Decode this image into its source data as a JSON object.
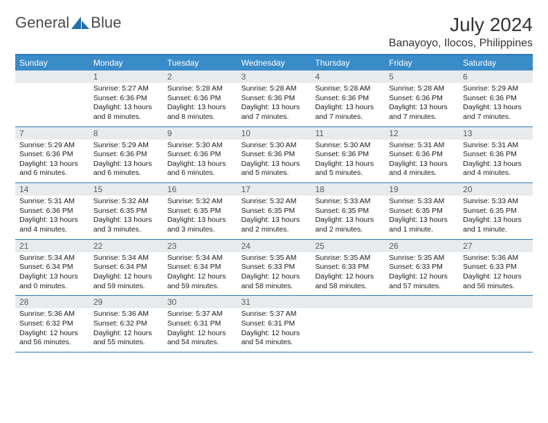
{
  "logo": {
    "text1": "General",
    "text2": "Blue"
  },
  "title": "July 2024",
  "location": "Banayoyo, Ilocos, Philippines",
  "colors": {
    "header_bar": "#3a8cc9",
    "border": "#2b77b8",
    "daynum_bg": "#e8ebed",
    "text": "#1a1a1a",
    "muted": "#5a5a5a",
    "logo_accent": "#1f6fb0"
  },
  "fonts": {
    "title_size": 28,
    "location_size": 16,
    "weekday_size": 12,
    "daynum_size": 12,
    "body_size": 10.5
  },
  "weekdays": [
    "Sunday",
    "Monday",
    "Tuesday",
    "Wednesday",
    "Thursday",
    "Friday",
    "Saturday"
  ],
  "weeks": [
    [
      {
        "empty": true
      },
      {
        "num": "1",
        "sunrise": "Sunrise: 5:27 AM",
        "sunset": "Sunset: 6:36 PM",
        "daylight": "Daylight: 13 hours and 8 minutes."
      },
      {
        "num": "2",
        "sunrise": "Sunrise: 5:28 AM",
        "sunset": "Sunset: 6:36 PM",
        "daylight": "Daylight: 13 hours and 8 minutes."
      },
      {
        "num": "3",
        "sunrise": "Sunrise: 5:28 AM",
        "sunset": "Sunset: 6:36 PM",
        "daylight": "Daylight: 13 hours and 7 minutes."
      },
      {
        "num": "4",
        "sunrise": "Sunrise: 5:28 AM",
        "sunset": "Sunset: 6:36 PM",
        "daylight": "Daylight: 13 hours and 7 minutes."
      },
      {
        "num": "5",
        "sunrise": "Sunrise: 5:28 AM",
        "sunset": "Sunset: 6:36 PM",
        "daylight": "Daylight: 13 hours and 7 minutes."
      },
      {
        "num": "6",
        "sunrise": "Sunrise: 5:29 AM",
        "sunset": "Sunset: 6:36 PM",
        "daylight": "Daylight: 13 hours and 7 minutes."
      }
    ],
    [
      {
        "num": "7",
        "sunrise": "Sunrise: 5:29 AM",
        "sunset": "Sunset: 6:36 PM",
        "daylight": "Daylight: 13 hours and 6 minutes."
      },
      {
        "num": "8",
        "sunrise": "Sunrise: 5:29 AM",
        "sunset": "Sunset: 6:36 PM",
        "daylight": "Daylight: 13 hours and 6 minutes."
      },
      {
        "num": "9",
        "sunrise": "Sunrise: 5:30 AM",
        "sunset": "Sunset: 6:36 PM",
        "daylight": "Daylight: 13 hours and 6 minutes."
      },
      {
        "num": "10",
        "sunrise": "Sunrise: 5:30 AM",
        "sunset": "Sunset: 6:36 PM",
        "daylight": "Daylight: 13 hours and 5 minutes."
      },
      {
        "num": "11",
        "sunrise": "Sunrise: 5:30 AM",
        "sunset": "Sunset: 6:36 PM",
        "daylight": "Daylight: 13 hours and 5 minutes."
      },
      {
        "num": "12",
        "sunrise": "Sunrise: 5:31 AM",
        "sunset": "Sunset: 6:36 PM",
        "daylight": "Daylight: 13 hours and 4 minutes."
      },
      {
        "num": "13",
        "sunrise": "Sunrise: 5:31 AM",
        "sunset": "Sunset: 6:36 PM",
        "daylight": "Daylight: 13 hours and 4 minutes."
      }
    ],
    [
      {
        "num": "14",
        "sunrise": "Sunrise: 5:31 AM",
        "sunset": "Sunset: 6:36 PM",
        "daylight": "Daylight: 13 hours and 4 minutes."
      },
      {
        "num": "15",
        "sunrise": "Sunrise: 5:32 AM",
        "sunset": "Sunset: 6:35 PM",
        "daylight": "Daylight: 13 hours and 3 minutes."
      },
      {
        "num": "16",
        "sunrise": "Sunrise: 5:32 AM",
        "sunset": "Sunset: 6:35 PM",
        "daylight": "Daylight: 13 hours and 3 minutes."
      },
      {
        "num": "17",
        "sunrise": "Sunrise: 5:32 AM",
        "sunset": "Sunset: 6:35 PM",
        "daylight": "Daylight: 13 hours and 2 minutes."
      },
      {
        "num": "18",
        "sunrise": "Sunrise: 5:33 AM",
        "sunset": "Sunset: 6:35 PM",
        "daylight": "Daylight: 13 hours and 2 minutes."
      },
      {
        "num": "19",
        "sunrise": "Sunrise: 5:33 AM",
        "sunset": "Sunset: 6:35 PM",
        "daylight": "Daylight: 13 hours and 1 minute."
      },
      {
        "num": "20",
        "sunrise": "Sunrise: 5:33 AM",
        "sunset": "Sunset: 6:35 PM",
        "daylight": "Daylight: 13 hours and 1 minute."
      }
    ],
    [
      {
        "num": "21",
        "sunrise": "Sunrise: 5:34 AM",
        "sunset": "Sunset: 6:34 PM",
        "daylight": "Daylight: 13 hours and 0 minutes."
      },
      {
        "num": "22",
        "sunrise": "Sunrise: 5:34 AM",
        "sunset": "Sunset: 6:34 PM",
        "daylight": "Daylight: 12 hours and 59 minutes."
      },
      {
        "num": "23",
        "sunrise": "Sunrise: 5:34 AM",
        "sunset": "Sunset: 6:34 PM",
        "daylight": "Daylight: 12 hours and 59 minutes."
      },
      {
        "num": "24",
        "sunrise": "Sunrise: 5:35 AM",
        "sunset": "Sunset: 6:33 PM",
        "daylight": "Daylight: 12 hours and 58 minutes."
      },
      {
        "num": "25",
        "sunrise": "Sunrise: 5:35 AM",
        "sunset": "Sunset: 6:33 PM",
        "daylight": "Daylight: 12 hours and 58 minutes."
      },
      {
        "num": "26",
        "sunrise": "Sunrise: 5:35 AM",
        "sunset": "Sunset: 6:33 PM",
        "daylight": "Daylight: 12 hours and 57 minutes."
      },
      {
        "num": "27",
        "sunrise": "Sunrise: 5:36 AM",
        "sunset": "Sunset: 6:33 PM",
        "daylight": "Daylight: 12 hours and 56 minutes."
      }
    ],
    [
      {
        "num": "28",
        "sunrise": "Sunrise: 5:36 AM",
        "sunset": "Sunset: 6:32 PM",
        "daylight": "Daylight: 12 hours and 56 minutes."
      },
      {
        "num": "29",
        "sunrise": "Sunrise: 5:36 AM",
        "sunset": "Sunset: 6:32 PM",
        "daylight": "Daylight: 12 hours and 55 minutes."
      },
      {
        "num": "30",
        "sunrise": "Sunrise: 5:37 AM",
        "sunset": "Sunset: 6:31 PM",
        "daylight": "Daylight: 12 hours and 54 minutes."
      },
      {
        "num": "31",
        "sunrise": "Sunrise: 5:37 AM",
        "sunset": "Sunset: 6:31 PM",
        "daylight": "Daylight: 12 hours and 54 minutes."
      },
      {
        "empty": true
      },
      {
        "empty": true
      },
      {
        "empty": true
      }
    ]
  ]
}
